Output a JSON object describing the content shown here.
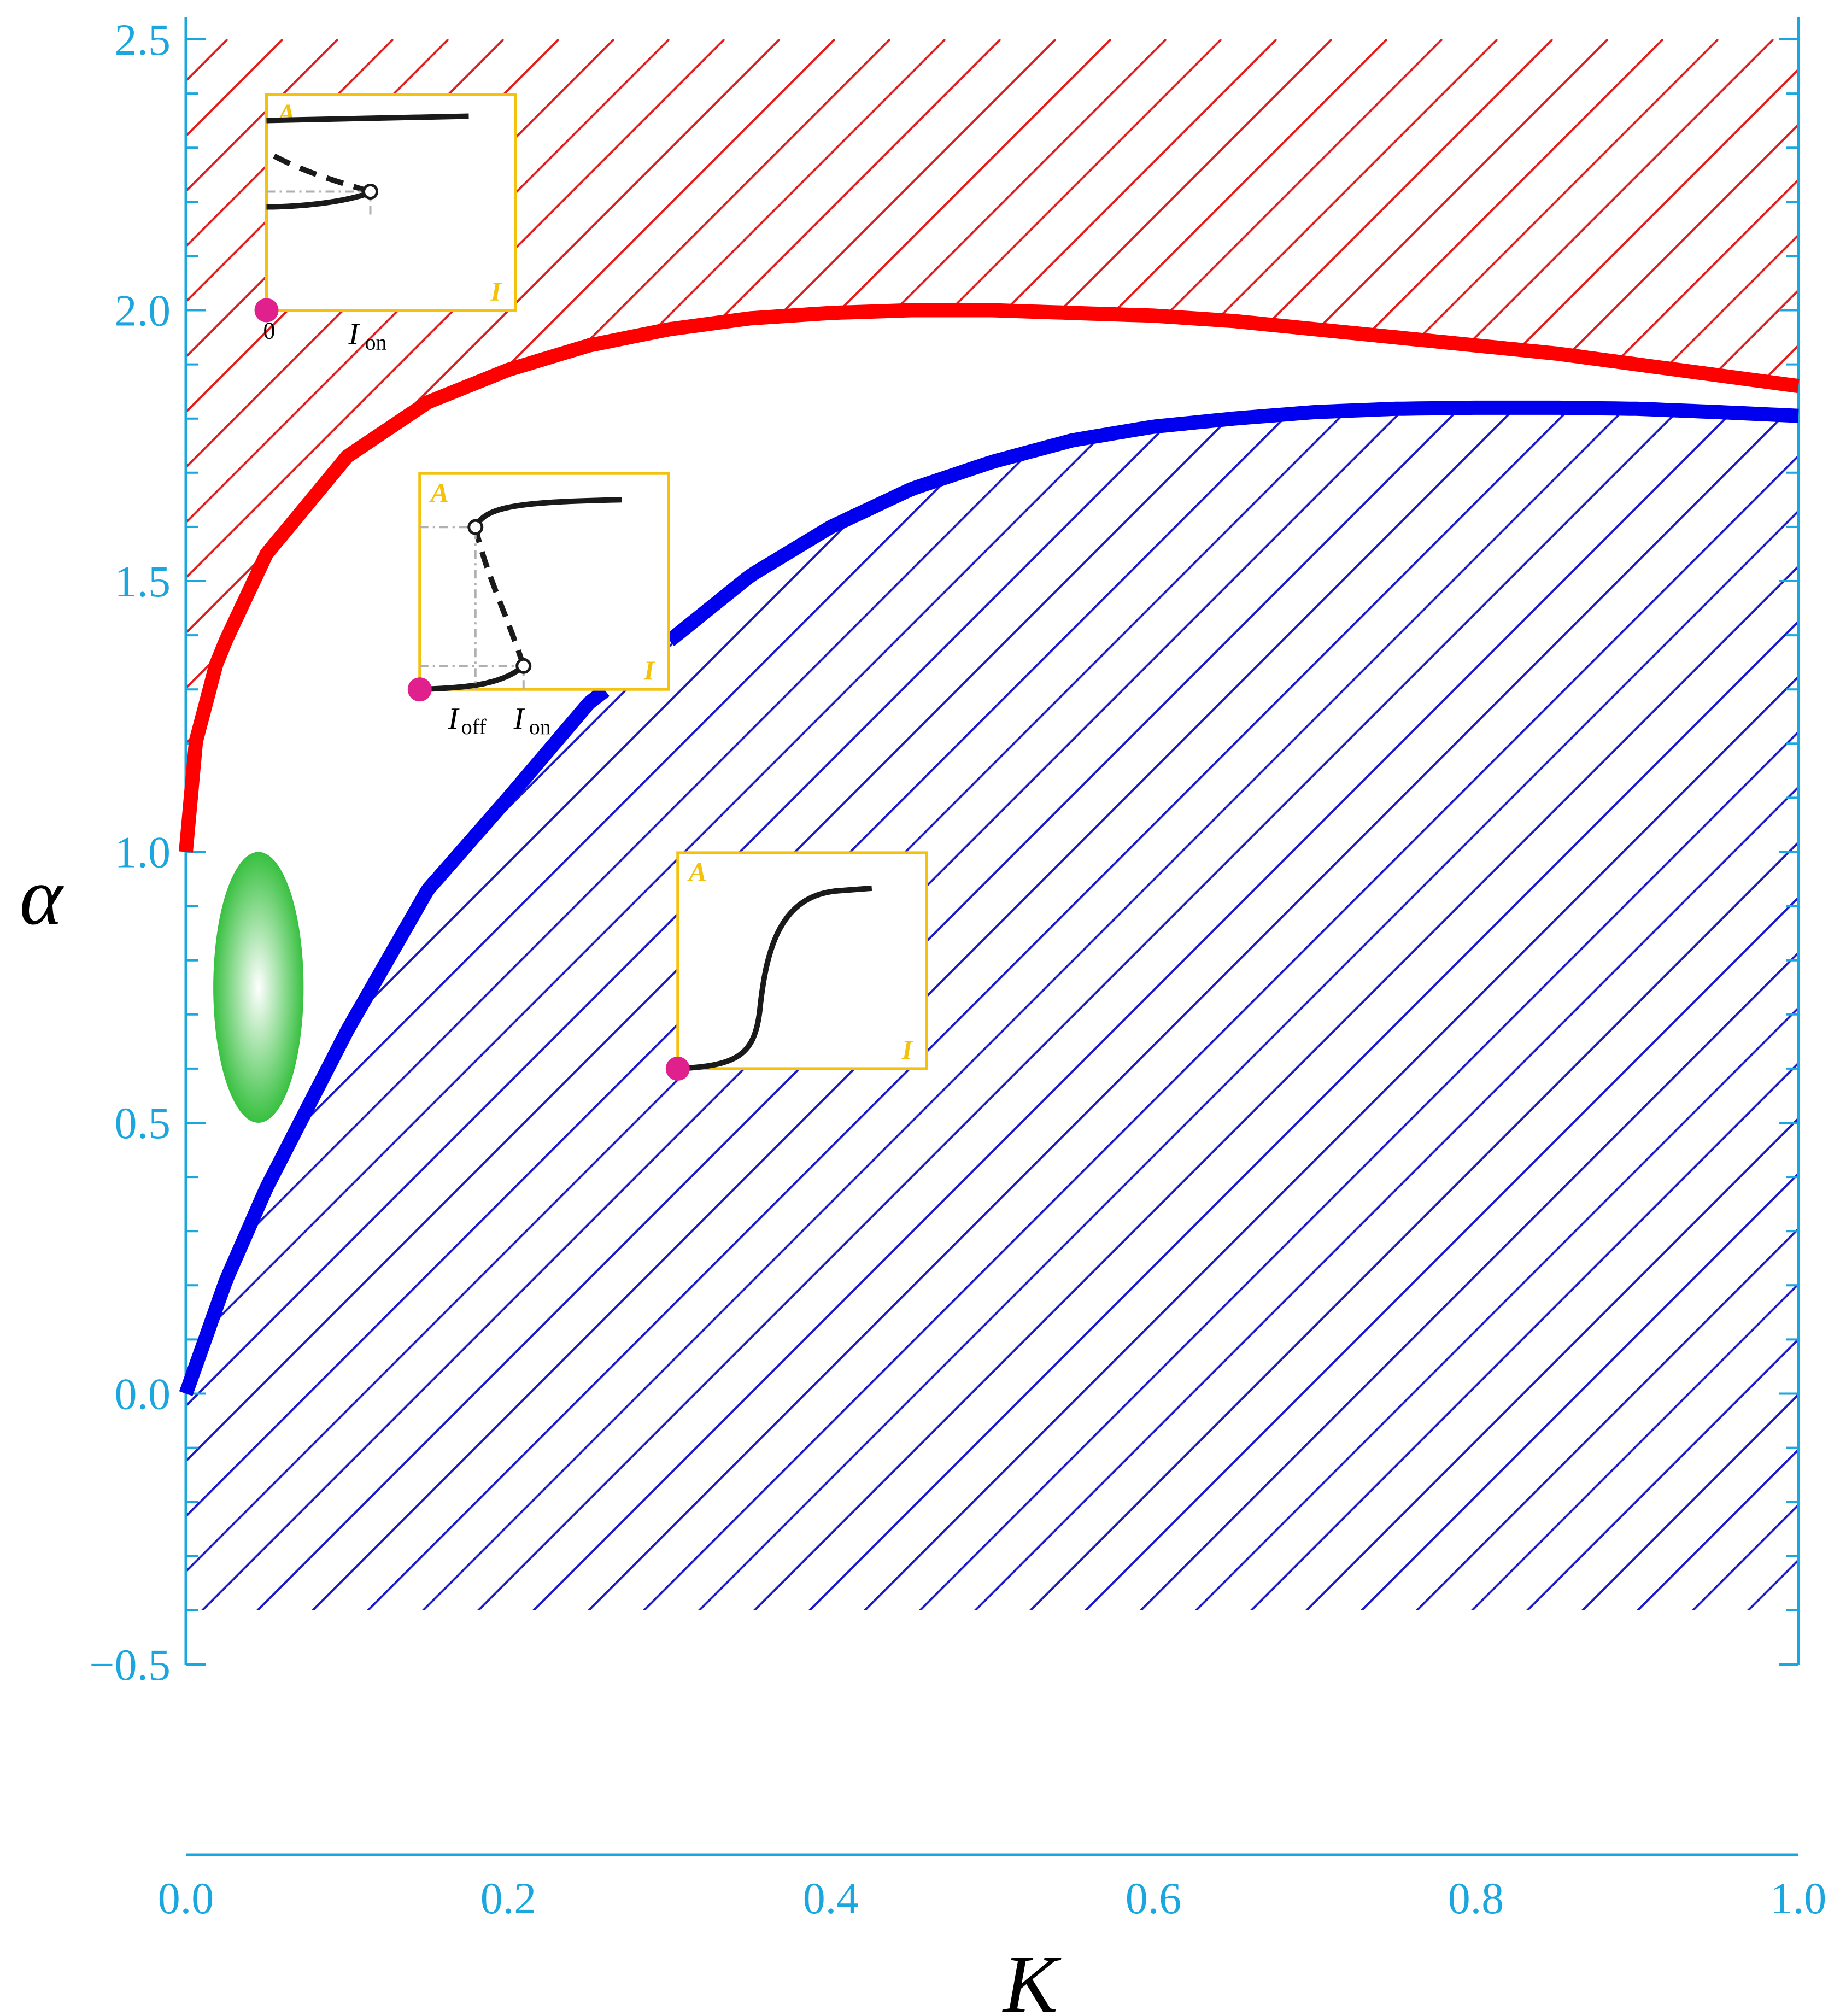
{
  "chart_data": {
    "type": "line",
    "xlabel": "K",
    "ylabel": "α",
    "xlim": [
      0.0,
      1.0
    ],
    "ylim": [
      -0.5,
      2.5
    ],
    "xticks": [
      "0.0",
      "0.2",
      "0.4",
      "0.6",
      "0.8",
      "1.0"
    ],
    "yticks": [
      "−0.5",
      "0.0",
      "0.5",
      "1.0",
      "1.5",
      "2.0",
      "2.5"
    ],
    "grid": false,
    "colors": {
      "axis": "#1aa7e0",
      "red_curve": "#ff0000",
      "blue_curve": "#0000ee",
      "red_hatch": "#e02020",
      "blue_hatch": "#1c1cc8",
      "inset_frame": "#f4c20d",
      "marker": "#e0208c",
      "ellipse": "#38c040"
    },
    "series": [
      {
        "color": "#ff0000",
        "x": [
          0.0,
          0.005,
          0.02,
          0.05,
          0.1,
          0.15,
          0.2,
          0.25,
          0.3,
          0.35,
          0.4,
          0.45,
          0.5,
          0.55,
          0.6,
          0.65,
          0.7,
          0.75,
          0.8,
          0.85,
          0.9,
          0.95,
          1.0
        ],
        "y": [
          1.0,
          1.19,
          1.36,
          1.55,
          1.73,
          1.83,
          1.89,
          1.935,
          1.965,
          1.985,
          1.995,
          2.0,
          2.0,
          1.995,
          1.99,
          1.98,
          1.965,
          1.95,
          1.935,
          1.92,
          1.9,
          1.88,
          1.86
        ]
      },
      {
        "color": "#0000ee",
        "x": [
          0.0,
          0.025,
          0.05,
          0.1,
          0.15,
          0.2,
          0.25,
          0.3,
          0.35,
          0.4,
          0.45,
          0.5,
          0.55,
          0.6,
          0.65,
          0.7,
          0.75,
          0.8,
          0.85,
          0.9,
          0.95,
          1.0
        ],
        "y": [
          0.0,
          0.21,
          0.38,
          0.67,
          0.93,
          1.1,
          1.275,
          1.39,
          1.51,
          1.6,
          1.67,
          1.72,
          1.76,
          1.785,
          1.8,
          1.812,
          1.818,
          1.82,
          1.82,
          1.818,
          1.812,
          1.805
        ],
        "gap_x": [
          0.26,
          0.3
        ]
      }
    ],
    "regions": [
      {
        "color": "#e02020",
        "pattern": "hatched",
        "bounded_below_by": "red curve"
      },
      {
        "color": "#1c1cc8",
        "pattern": "hatched",
        "bounded_above_by": "blue curve",
        "y_from": -0.4
      },
      {
        "color": "#38c040",
        "pattern": "ellipse",
        "center": [
          0.045,
          0.75
        ],
        "half_width_k": 0.028,
        "half_height_alpha": 0.25
      }
    ],
    "insets": [
      {
        "anchor": [
          0.05,
          2.0
        ],
        "y_label": "A",
        "x_label": "I",
        "tick_labels": [
          "0",
          "I",
          "on"
        ],
        "shape": "hysteresis"
      },
      {
        "anchor": [
          0.145,
          1.3
        ],
        "y_label": "A",
        "x_label": "I",
        "tick_labels": [
          "I",
          "off",
          "I",
          "on"
        ],
        "shape": "bistable"
      },
      {
        "anchor": [
          0.305,
          0.6
        ],
        "y_label": "A",
        "x_label": "I",
        "tick_labels": [],
        "shape": "sigmoid"
      }
    ]
  }
}
